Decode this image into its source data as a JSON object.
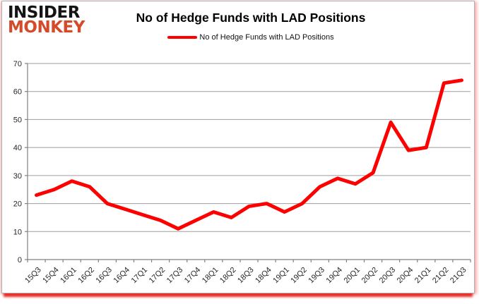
{
  "header": {
    "logo": {
      "line1": "INSIDER",
      "line2": "MONKEY"
    },
    "title": "No of Hedge Funds with LAD Positions",
    "legend": {
      "label": "No of Hedge Funds with LAD Positions"
    }
  },
  "colors": {
    "series": "#ff0000",
    "grid": "#9e9e9e",
    "axis": "#808080",
    "tick_text": "#262626",
    "logo_black": "#141414",
    "logo_red": "#d54a28",
    "accent_border": "#e8302a"
  },
  "chart_data": {
    "type": "line",
    "title": "No of Hedge Funds with LAD Positions",
    "xlabel": "",
    "ylabel": "",
    "ylim": [
      0,
      70
    ],
    "yticks": [
      0,
      10,
      20,
      30,
      40,
      50,
      60,
      70
    ],
    "grid": "horizontal",
    "legend_position": "top",
    "categories": [
      "15Q3",
      "15Q4",
      "16Q1",
      "16Q2",
      "16Q3",
      "16Q4",
      "17Q1",
      "17Q2",
      "17Q3",
      "17Q4",
      "18Q1",
      "18Q2",
      "18Q3",
      "18Q4",
      "19Q1",
      "19Q2",
      "19Q3",
      "19Q4",
      "20Q1",
      "20Q2",
      "20Q3",
      "20Q4",
      "21Q1",
      "21Q2",
      "21Q3"
    ],
    "series": [
      {
        "name": "No of Hedge Funds with LAD Positions",
        "color": "#ff0000",
        "values": [
          23,
          25,
          28,
          26,
          20,
          18,
          16,
          14,
          11,
          14,
          17,
          15,
          19,
          20,
          17,
          20,
          26,
          29,
          27,
          31,
          49,
          39,
          40,
          63,
          64
        ]
      }
    ]
  }
}
